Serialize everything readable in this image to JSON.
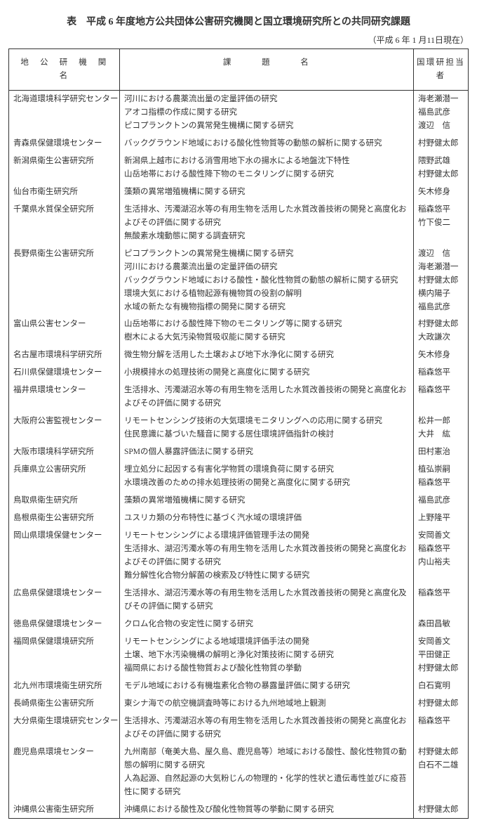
{
  "title": "表　平成 6 年度地方公共団体公害研究機関と国立環境研究所との共同研究課題",
  "asof": "（平成 6 年 1 月11日現在）",
  "headers": {
    "org": "地　公　研　機　関　名",
    "topic": "課　　　題　　　名",
    "person": "国環研担当者"
  },
  "rows": [
    {
      "org": "北海道環境科学研究センター",
      "topics": [
        {
          "t": "河川における農薬流出量の定量評価の研究",
          "p": "海老瀬潜一"
        },
        {
          "t": "アオコ指標の作成に関する研究",
          "p": "福島武彦"
        },
        {
          "t": "ピコプランクトンの異常発生機構に関する研究",
          "p": "渡辺　信"
        }
      ]
    },
    {
      "org": "青森県保健環境センター",
      "topics": [
        {
          "t": "バックグラウンド地域における酸化性物質等の動態の解析に関する研究",
          "p": "村野健太郎"
        }
      ]
    },
    {
      "org": "新潟県衛生公害研究所",
      "topics": [
        {
          "t": "新潟県上越市における消雪用地下水の揚水による地盤沈下特性",
          "p": "隈野武雄"
        },
        {
          "t": "山岳地帯における酸性降下物のモニタリングに関する研究",
          "p": "村野健太郎"
        }
      ]
    },
    {
      "org": "仙台市衛生研究所",
      "topics": [
        {
          "t": "藻類の異常増殖機構に関する研究",
          "p": "矢木修身"
        }
      ]
    },
    {
      "org": "千葉県水質保全研究所",
      "topics": [
        {
          "t": "生活排水、汚濁湖沼水等の有用生物を活用した水質改善技術の開発と高度化およびその評価に関する研究",
          "p": "稲森悠平"
        },
        {
          "t": "無酸素水塊動態に関する調査研究",
          "p": "竹下俊二"
        }
      ]
    },
    {
      "org": "長野県衛生公害研究所",
      "topics": [
        {
          "t": "ピコプランクトンの異常発生機構に関する研究",
          "p": "渡辺　信"
        },
        {
          "t": "河川における農薬流出量の定量評価の研究",
          "p": "海老瀬潜一"
        },
        {
          "t": "バックグラウンド地域における酸性・酸化性物質の動態の解析に関する研究",
          "p": "村野健太郎"
        },
        {
          "t": "環境大気における植物起源有機物質の役割の解明",
          "p": "横内陽子"
        },
        {
          "t": "水域の新たな有機物指標の開発に関する研究",
          "p": "福島武彦"
        }
      ]
    },
    {
      "org": "富山県公害センター",
      "topics": [
        {
          "t": "山岳地帯における酸性降下物のモニタリング等に関する研究",
          "p": "村野健太郎"
        },
        {
          "t": "樹木による大気汚染物質吸収能に関する研究",
          "p": "大政謙次"
        }
      ]
    },
    {
      "org": "名古屋市環境科学研究所",
      "topics": [
        {
          "t": "微生物分解を活用した土壌および地下水浄化に関する研究",
          "p": "矢木修身"
        }
      ]
    },
    {
      "org": "石川県保健環境センター",
      "topics": [
        {
          "t": "小規模排水の処理技術の開発と高度化に関する研究",
          "p": "稲森悠平"
        }
      ]
    },
    {
      "org": "福井県環境センター",
      "topics": [
        {
          "t": "生活排水、汚濁湖沼水等の有用生物を活用した水質改善技術の開発と高度化およびその評価に関する研究",
          "p": "稲森悠平"
        }
      ]
    },
    {
      "org": "大阪府公害監視センター",
      "topics": [
        {
          "t": "リモートセンシング技術の大気環境モニタリングへの応用に関する研究",
          "p": "松井一郎"
        },
        {
          "t": "住民意識に基づいた騒音に関する居住環境評価指針の検討",
          "p": "大井　紘"
        }
      ]
    },
    {
      "org": "大阪市環境科学研究所",
      "topics": [
        {
          "t": "SPMの個人暴露評価法に関する研究",
          "p": "田村憲治"
        }
      ]
    },
    {
      "org": "兵庫県立公害研究所",
      "topics": [
        {
          "t": "埋立処分に起因する有害化学物質の環境負荷に関する研究",
          "p": "植弘崇嗣"
        },
        {
          "t": "水環境改善のための排水処理技術の開発と高度化に関する研究",
          "p": "稲森悠平"
        }
      ]
    },
    {
      "org": "鳥取県衛生研究所",
      "topics": [
        {
          "t": "藻類の異常増殖機構に関する研究",
          "p": "福島武彦"
        }
      ]
    },
    {
      "org": "島根県衛生公害研究所",
      "topics": [
        {
          "t": "ユスリカ類の分布特性に基づく汽水域の環境評価",
          "p": "上野隆平"
        }
      ]
    },
    {
      "org": "岡山県環境保健センター",
      "topics": [
        {
          "t": "リモートセンシングによる環境評価管理手法の開発",
          "p": "安岡善文"
        },
        {
          "t": "生活排水、湖沼汚濁水等の有用生物を活用した水質改善技術の開発と高度化およびその評価に関する研究",
          "p": "稲森悠平"
        },
        {
          "t": "難分解性化合物分解菌の検索及び特性に関する研究",
          "p": "内山裕夫"
        }
      ]
    },
    {
      "org": "広島県保健環境センター",
      "topics": [
        {
          "t": "生活排水、湖沼汚濁水等の有用生物を活用した水質改善技術の開発と高度化及びその評価に関する研究",
          "p": "稲森悠平"
        }
      ]
    },
    {
      "org": "徳島県保健環境センター",
      "topics": [
        {
          "t": "クロム化合物の安定性に関する研究",
          "p": "森田昌敏"
        }
      ]
    },
    {
      "org": "福岡県保健環境研究所",
      "topics": [
        {
          "t": "リモートセンシングによる地域環境評価手法の開発",
          "p": "安岡善文"
        },
        {
          "t": "土壌、地下水汚染機構の解明と浄化対策技術に関する研究",
          "p": "平田健正"
        },
        {
          "t": "福岡県における酸性物質および酸化性物質の挙動",
          "p": "村野健太郎"
        }
      ]
    },
    {
      "org": "北九州市環境衛生研究所",
      "topics": [
        {
          "t": "モデル地域における有機塩素化合物の暴露量評価に関する研究",
          "p": "白石寛明"
        }
      ]
    },
    {
      "org": "長崎県衛生公害研究所",
      "topics": [
        {
          "t": "東シナ海での航空機調査時等における九州地域地上観測",
          "p": "村野健太郎"
        }
      ]
    },
    {
      "org": "大分県衛生環境研究センター",
      "topics": [
        {
          "t": "生活排水、汚濁湖沼水等の有用生物を活用した水質改善技術の開発と高度化およびその評価に関する研究",
          "p": "稲森悠平"
        }
      ]
    },
    {
      "org": "鹿児島県環境センター",
      "topics": [
        {
          "t": "九州南部（奄美大島、屋久島、鹿児島等）地域における酸性、酸化性物質の動態の解明に関する研究",
          "p": "村野健太郎"
        },
        {
          "t": "人為起源、自然起源の大気粉じんの物理的・化学的性状と遺伝毒性並びに疫苔性に関する研究",
          "p": "白石不二雄"
        }
      ]
    },
    {
      "org": "沖縄県公害衛生研究所",
      "topics": [
        {
          "t": "沖縄県における酸性及び酸化性物質等の挙動に関する研究",
          "p": "村野健太郎"
        }
      ]
    }
  ]
}
